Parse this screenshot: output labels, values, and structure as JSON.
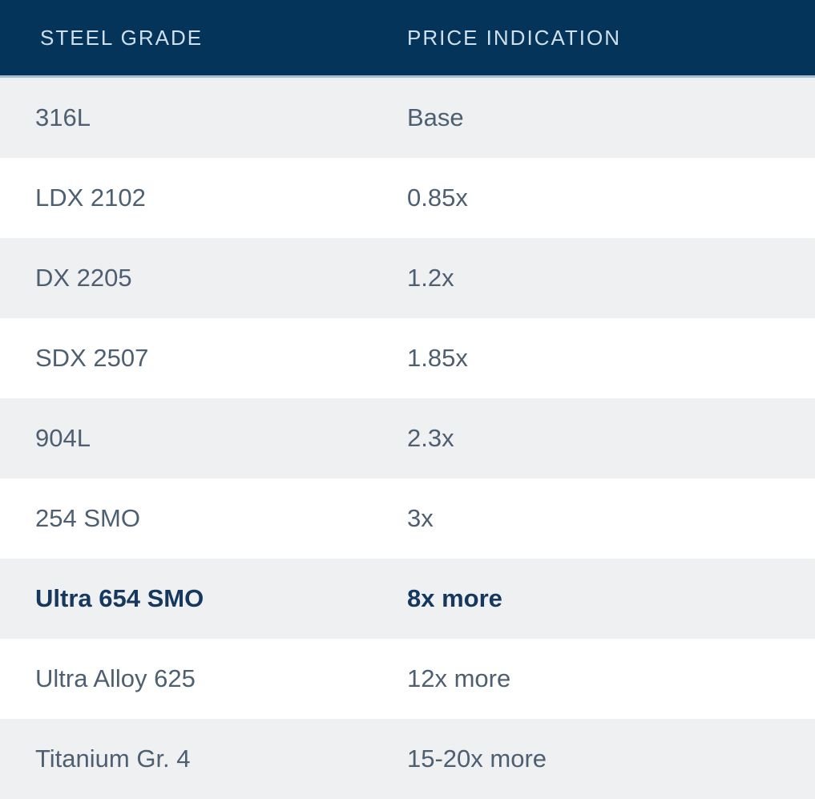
{
  "chart_data": {
    "type": "table",
    "columns": [
      "STEEL GRADE",
      "PRICE INDICATION"
    ],
    "rows": [
      [
        "316L",
        "Base"
      ],
      [
        "LDX 2102",
        "0.85x"
      ],
      [
        "DX 2205",
        "1.2x"
      ],
      [
        "SDX 2507",
        "1.85x"
      ],
      [
        "904L",
        "2.3x"
      ],
      [
        "254 SMO",
        "3x"
      ],
      [
        "Ultra 654 SMO",
        "8x more"
      ],
      [
        "Ultra Alloy 625",
        "12x more"
      ],
      [
        "Titanium Gr. 4",
        "15-20x more"
      ]
    ],
    "emphasized_row_index": 6,
    "row_striping": "alternating",
    "base_row_label": "316L",
    "colors": {
      "header_bg": "#043459",
      "header_text": "#cfe0ec",
      "header_separator": "#a7bccf",
      "row_alt_bg": "#eef0f2",
      "row_bg": "#ffffff",
      "body_text": "#4e5f71",
      "emphasis_text": "#16385e"
    }
  }
}
